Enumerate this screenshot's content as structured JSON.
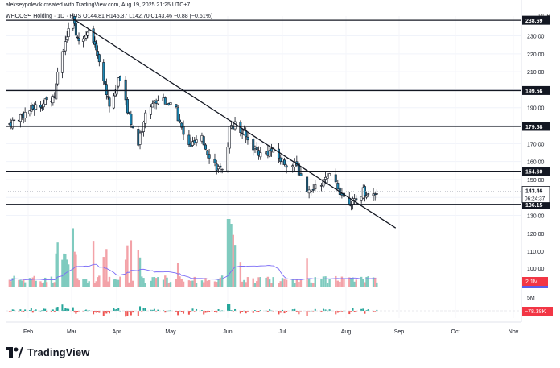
{
  "header": {
    "credit": "alekseypolevik created with TradingView.com, Aug 19, 2025 21:25 UTC+7",
    "symbol_line": "WHOOSH Holding · 1D · RUS  O144.81  H145.37  L142.70  C143.46  −0.88 (−0.61%)",
    "currency": "RUB"
  },
  "chart_data": {
    "type": "candlestick",
    "ylim": [
      128,
      241
    ],
    "y_ticks": [
      130,
      140,
      150,
      160,
      170,
      180,
      190,
      200,
      210,
      220,
      230
    ],
    "y_tick_labels": [
      "130.00",
      "140.00",
      "150.00",
      "160.00",
      "170.00",
      "180.00",
      "190.00",
      "200.00",
      "210.00",
      "220.00",
      "230.00"
    ],
    "x_ticks": [
      "Feb",
      "Mar",
      "Apr",
      "May",
      "Jun",
      "Jul",
      "Aug",
      "Sep",
      "Oct",
      "Nov"
    ],
    "levels": [
      {
        "value": 238.69,
        "label": "238.69"
      },
      {
        "value": 199.56,
        "label": "199.56"
      },
      {
        "value": 179.58,
        "label": "179.58"
      },
      {
        "value": 154.6,
        "label": "154.60"
      },
      {
        "value": 136.15,
        "label": "136.15"
      }
    ],
    "last_price": {
      "value": 143.46,
      "label": "143.46",
      "countdown": "06:24:37"
    },
    "trendline": {
      "start": {
        "date": "Mar 1",
        "value": 240
      },
      "end": {
        "date": "Aug 30",
        "value": 123
      }
    },
    "volume": {
      "ticks": [
        "120.00",
        "110.00",
        "100.00"
      ],
      "label": "2.1M"
    },
    "indicator": {
      "ticks": [
        "5M"
      ],
      "label": "−78.38K"
    },
    "ohlc_keypoints": [
      {
        "date": "Jan 20",
        "close": 181
      },
      {
        "date": "Jan 28",
        "close": 186
      },
      {
        "date": "Feb 5",
        "close": 190
      },
      {
        "date": "Feb 12",
        "close": 193
      },
      {
        "date": "Feb 18",
        "close": 197
      },
      {
        "date": "Feb 22",
        "close": 220
      },
      {
        "date": "Feb 27",
        "close": 232
      },
      {
        "date": "Mar 2",
        "close": 238
      },
      {
        "date": "Mar 6",
        "close": 226
      },
      {
        "date": "Mar 12",
        "close": 234
      },
      {
        "date": "Mar 18",
        "close": 224
      },
      {
        "date": "Mar 24",
        "close": 202
      },
      {
        "date": "Mar 28",
        "close": 190
      },
      {
        "date": "Apr 2",
        "close": 206
      },
      {
        "date": "Apr 8",
        "close": 186
      },
      {
        "date": "Apr 13",
        "close": 170
      },
      {
        "date": "Apr 18",
        "close": 190
      },
      {
        "date": "Apr 26",
        "close": 196
      },
      {
        "date": "May 4",
        "close": 188
      },
      {
        "date": "May 10",
        "close": 168
      },
      {
        "date": "May 18",
        "close": 172
      },
      {
        "date": "May 24",
        "close": 160
      },
      {
        "date": "May 30",
        "close": 152
      },
      {
        "date": "Jun 2",
        "close": 178
      },
      {
        "date": "Jun 5",
        "close": 182
      },
      {
        "date": "Jun 12",
        "close": 172
      },
      {
        "date": "Jun 19",
        "close": 164
      },
      {
        "date": "Jun 25",
        "close": 166
      },
      {
        "date": "Jul 1",
        "close": 160
      },
      {
        "date": "Jul 8",
        "close": 157
      },
      {
        "date": "Jul 14",
        "close": 142
      },
      {
        "date": "Jul 20",
        "close": 148
      },
      {
        "date": "Jul 25",
        "close": 152
      },
      {
        "date": "Jul 31",
        "close": 140
      },
      {
        "date": "Aug 6",
        "close": 137
      },
      {
        "date": "Aug 11",
        "close": 144
      },
      {
        "date": "Aug 15",
        "close": 141
      },
      {
        "date": "Aug 19",
        "close": 143.46
      }
    ]
  },
  "brand": {
    "name": "TradingView",
    "logo_icon": "tradingview-logo"
  }
}
